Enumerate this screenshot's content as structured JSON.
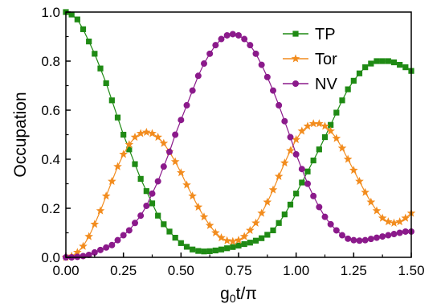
{
  "chart_data": {
    "type": "line",
    "title": "",
    "xlabel": "g0t/π",
    "xlabel_parts": {
      "base": "g",
      "sub": "0",
      "rest": "t/π"
    },
    "ylabel": "Occupation",
    "xlim": [
      0,
      1.5
    ],
    "ylim": [
      0,
      1.0
    ],
    "xticks": [
      "0.00",
      "0.25",
      "0.50",
      "0.75",
      "1.00",
      "1.25",
      "1.50"
    ],
    "yticks": [
      "0.0",
      "0.2",
      "0.4",
      "0.6",
      "0.8",
      "1.0"
    ],
    "grid": false,
    "legend_position": "top-right",
    "x": [
      0.0,
      0.025,
      0.05,
      0.075,
      0.1,
      0.125,
      0.15,
      0.175,
      0.2,
      0.225,
      0.25,
      0.275,
      0.3,
      0.325,
      0.35,
      0.375,
      0.4,
      0.425,
      0.45,
      0.475,
      0.5,
      0.525,
      0.55,
      0.575,
      0.6,
      0.625,
      0.65,
      0.675,
      0.7,
      0.725,
      0.75,
      0.775,
      0.8,
      0.825,
      0.85,
      0.875,
      0.9,
      0.925,
      0.95,
      0.975,
      1.0,
      1.025,
      1.05,
      1.075,
      1.1,
      1.125,
      1.15,
      1.175,
      1.2,
      1.225,
      1.25,
      1.275,
      1.3,
      1.325,
      1.35,
      1.375,
      1.4,
      1.425,
      1.45,
      1.475,
      1.5
    ],
    "series": [
      {
        "name": "TP",
        "color": "#1f8a14",
        "marker": "square",
        "values": [
          1.0,
          0.99,
          0.97,
          0.93,
          0.88,
          0.83,
          0.77,
          0.71,
          0.64,
          0.57,
          0.5,
          0.44,
          0.38,
          0.32,
          0.27,
          0.22,
          0.17,
          0.135,
          0.105,
          0.08,
          0.058,
          0.043,
          0.032,
          0.026,
          0.024,
          0.025,
          0.028,
          0.032,
          0.037,
          0.042,
          0.048,
          0.054,
          0.06,
          0.068,
          0.078,
          0.092,
          0.11,
          0.14,
          0.175,
          0.215,
          0.26,
          0.305,
          0.35,
          0.395,
          0.44,
          0.49,
          0.54,
          0.59,
          0.64,
          0.685,
          0.72,
          0.75,
          0.775,
          0.79,
          0.8,
          0.8,
          0.8,
          0.795,
          0.785,
          0.775,
          0.76
        ]
      },
      {
        "name": "Tor",
        "color": "#f28c1e",
        "marker": "star",
        "values": [
          0.0,
          0.005,
          0.02,
          0.045,
          0.085,
          0.135,
          0.19,
          0.25,
          0.31,
          0.37,
          0.42,
          0.46,
          0.49,
          0.505,
          0.51,
          0.505,
          0.49,
          0.465,
          0.43,
          0.39,
          0.345,
          0.295,
          0.25,
          0.205,
          0.165,
          0.13,
          0.1,
          0.08,
          0.068,
          0.065,
          0.07,
          0.085,
          0.11,
          0.14,
          0.18,
          0.225,
          0.275,
          0.33,
          0.385,
          0.435,
          0.48,
          0.515,
          0.535,
          0.545,
          0.545,
          0.535,
          0.515,
          0.485,
          0.445,
          0.4,
          0.355,
          0.31,
          0.265,
          0.225,
          0.19,
          0.16,
          0.145,
          0.14,
          0.145,
          0.16,
          0.18
        ]
      },
      {
        "name": "NV",
        "color": "#8b1a8b",
        "marker": "circle",
        "values": [
          0.0,
          0.0,
          0.002,
          0.005,
          0.01,
          0.02,
          0.03,
          0.04,
          0.05,
          0.07,
          0.09,
          0.11,
          0.14,
          0.17,
          0.21,
          0.26,
          0.31,
          0.37,
          0.43,
          0.5,
          0.56,
          0.62,
          0.68,
          0.74,
          0.79,
          0.83,
          0.865,
          0.89,
          0.905,
          0.91,
          0.905,
          0.89,
          0.865,
          0.83,
          0.785,
          0.735,
          0.68,
          0.62,
          0.555,
          0.49,
          0.42,
          0.36,
          0.3,
          0.25,
          0.205,
          0.165,
          0.135,
          0.11,
          0.09,
          0.076,
          0.07,
          0.068,
          0.07,
          0.075,
          0.08,
          0.085,
          0.09,
          0.095,
          0.1,
          0.105,
          0.105
        ]
      }
    ]
  }
}
